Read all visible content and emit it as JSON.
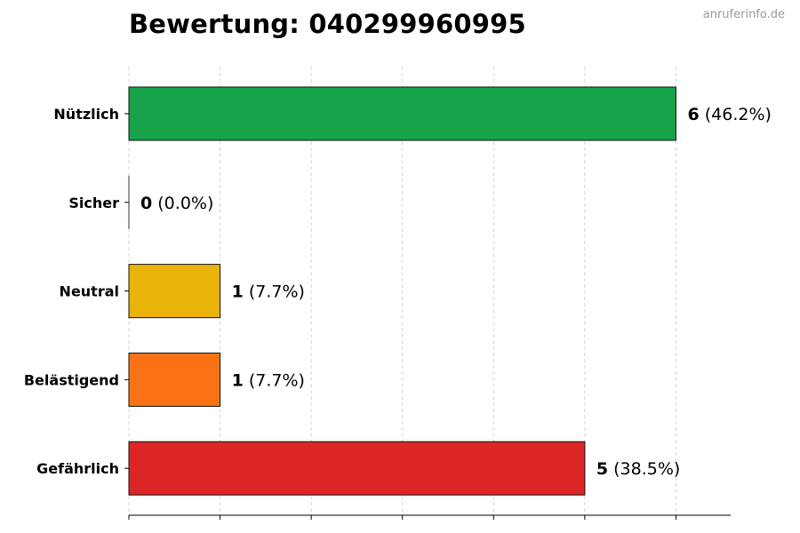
{
  "watermark": "anruferinfo.de",
  "chart_data": {
    "type": "bar",
    "orientation": "horizontal",
    "title": "Bewertung: 040299960995",
    "categories": [
      "Nützlich",
      "Sicher",
      "Neutral",
      "Belästigend",
      "Gefährlich"
    ],
    "values": [
      6,
      0,
      1,
      1,
      5
    ],
    "percent_labels": [
      "(46.2%)",
      "(0.0%)",
      "(7.7%)",
      "(7.7%)",
      "(38.5%)"
    ],
    "colors": [
      "#16a34a",
      "#15803d",
      "#eab308",
      "#f97316",
      "#dc2626"
    ],
    "xlim": [
      0,
      6.6
    ],
    "x_ticks": [
      0,
      1,
      2,
      3,
      4,
      5,
      6
    ],
    "grid": "x, dashed",
    "xlabel": "",
    "ylabel": ""
  }
}
